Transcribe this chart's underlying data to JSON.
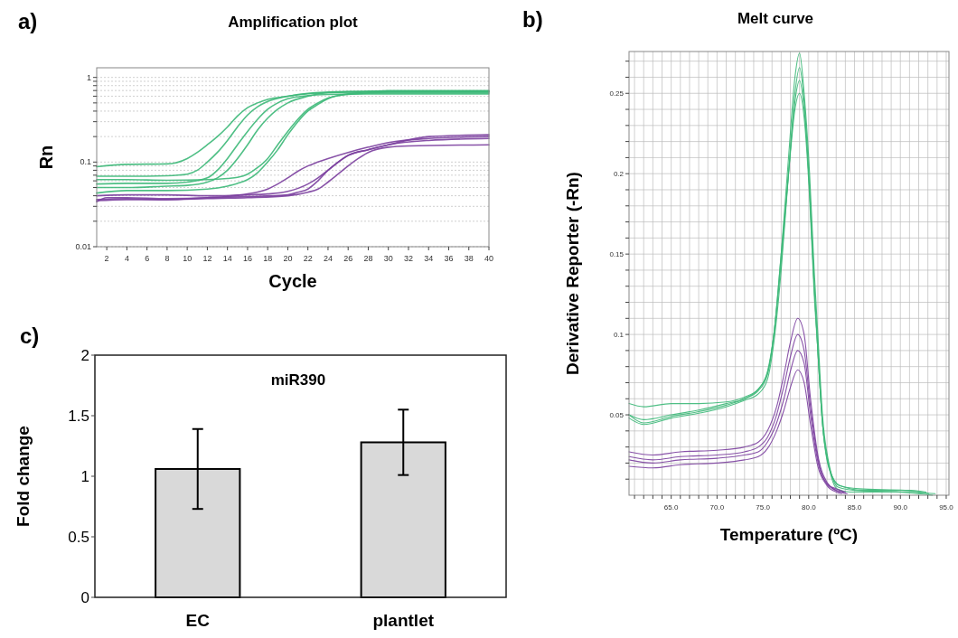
{
  "chart_data": [
    {
      "type": "line",
      "title": "Amplification plot",
      "xlabel": "Cycle",
      "ylabel": "Rn",
      "annotations": [
        "a)"
      ],
      "log": "y",
      "grid": "y",
      "xlim": [
        1,
        40
      ],
      "xticks": [
        2,
        4,
        6,
        8,
        10,
        12,
        14,
        16,
        18,
        20,
        22,
        24,
        26,
        28,
        30,
        32,
        34,
        36,
        38,
        40
      ],
      "ylim": [
        0.01,
        1.3
      ],
      "yticks": [
        0.01,
        {
          "value": 0.02,
          "label": null
        },
        {
          "value": 0.03,
          "label": null
        },
        {
          "value": 0.04,
          "label": null
        },
        {
          "value": 0.05,
          "label": null
        },
        {
          "value": 0.06,
          "label": null
        },
        {
          "value": 0.07,
          "label": null
        },
        {
          "value": 0.08,
          "label": null
        },
        {
          "value": 0.09,
          "label": null
        },
        0.1,
        {
          "value": 0.2,
          "label": null
        },
        {
          "value": 0.3,
          "label": null
        },
        {
          "value": 0.4,
          "label": null
        },
        {
          "value": 0.5,
          "label": null
        },
        {
          "value": 0.6,
          "label": null
        },
        {
          "value": 0.7,
          "label": null
        },
        {
          "value": 0.8,
          "label": null
        },
        {
          "value": 0.9,
          "label": null
        },
        1
      ],
      "series": [
        {
          "color": "#3cb878",
          "x": [
            1,
            4,
            8,
            10,
            11,
            12,
            13,
            14,
            15,
            16,
            17,
            18,
            20,
            22,
            26,
            32,
            40
          ],
          "values": [
            0.088,
            0.094,
            0.095,
            0.11,
            0.13,
            0.16,
            0.2,
            0.26,
            0.35,
            0.44,
            0.5,
            0.55,
            0.6,
            0.64,
            0.67,
            0.67,
            0.67
          ]
        },
        {
          "color": "#3cb878",
          "x": [
            1,
            4,
            8,
            10,
            11,
            12,
            13,
            14,
            15,
            16,
            17,
            18,
            20,
            22,
            26,
            32,
            40
          ],
          "values": [
            0.068,
            0.068,
            0.069,
            0.072,
            0.08,
            0.1,
            0.13,
            0.18,
            0.26,
            0.36,
            0.45,
            0.52,
            0.6,
            0.65,
            0.68,
            0.69,
            0.69
          ]
        },
        {
          "color": "#3cb878",
          "x": [
            1,
            4,
            8,
            10,
            12,
            13,
            14,
            15,
            16,
            17,
            18,
            19,
            20,
            22,
            24,
            28,
            40
          ],
          "values": [
            0.055,
            0.056,
            0.056,
            0.058,
            0.065,
            0.08,
            0.11,
            0.16,
            0.23,
            0.32,
            0.42,
            0.5,
            0.56,
            0.61,
            0.63,
            0.64,
            0.64
          ]
        },
        {
          "color": "#3cb878",
          "x": [
            1,
            4,
            8,
            10,
            12,
            13,
            14,
            15,
            16,
            17,
            18,
            19,
            20,
            22,
            24,
            28,
            40
          ],
          "values": [
            0.05,
            0.05,
            0.052,
            0.053,
            0.058,
            0.065,
            0.08,
            0.11,
            0.16,
            0.24,
            0.33,
            0.42,
            0.5,
            0.6,
            0.66,
            0.68,
            0.68
          ]
        },
        {
          "color": "#3cb878",
          "x": [
            1,
            4,
            8,
            12,
            14,
            15,
            16,
            17,
            18,
            19,
            20,
            21,
            22,
            23,
            24,
            26,
            30,
            40
          ],
          "values": [
            0.062,
            0.062,
            0.061,
            0.062,
            0.064,
            0.066,
            0.072,
            0.086,
            0.11,
            0.16,
            0.23,
            0.32,
            0.42,
            0.5,
            0.57,
            0.63,
            0.67,
            0.67
          ]
        },
        {
          "color": "#3cb878",
          "x": [
            1,
            4,
            8,
            12,
            14,
            15,
            16,
            17,
            18,
            19,
            20,
            21,
            22,
            23,
            24,
            26,
            30,
            40
          ],
          "values": [
            0.043,
            0.046,
            0.046,
            0.048,
            0.052,
            0.056,
            0.062,
            0.075,
            0.1,
            0.14,
            0.21,
            0.3,
            0.4,
            0.48,
            0.56,
            0.64,
            0.7,
            0.7
          ]
        },
        {
          "color": "#7b3f9e",
          "x": [
            1,
            2,
            4,
            8,
            12,
            16,
            18,
            19,
            20,
            21,
            22,
            23,
            24,
            26,
            28,
            30,
            34,
            40
          ],
          "values": [
            0.034,
            0.038,
            0.038,
            0.037,
            0.038,
            0.042,
            0.048,
            0.055,
            0.065,
            0.078,
            0.09,
            0.1,
            0.11,
            0.13,
            0.15,
            0.17,
            0.19,
            0.2
          ]
        },
        {
          "color": "#7b3f9e",
          "x": [
            1,
            4,
            8,
            12,
            16,
            20,
            21,
            22,
            23,
            24,
            25,
            26,
            28,
            30,
            34,
            40
          ],
          "values": [
            0.036,
            0.037,
            0.036,
            0.038,
            0.039,
            0.041,
            0.044,
            0.048,
            0.06,
            0.08,
            0.1,
            0.12,
            0.14,
            0.16,
            0.18,
            0.19
          ]
        },
        {
          "color": "#7b3f9e",
          "x": [
            1,
            4,
            8,
            12,
            16,
            20,
            22,
            23,
            24,
            25,
            26,
            27,
            28,
            30,
            32,
            40
          ],
          "values": [
            0.035,
            0.036,
            0.036,
            0.037,
            0.038,
            0.04,
            0.044,
            0.048,
            0.058,
            0.072,
            0.09,
            0.11,
            0.13,
            0.15,
            0.155,
            0.16
          ]
        },
        {
          "color": "#7b3f9e",
          "x": [
            1,
            4,
            8,
            12,
            16,
            18,
            20,
            22,
            23,
            24,
            26,
            28,
            30,
            34,
            40
          ],
          "values": [
            0.04,
            0.041,
            0.041,
            0.04,
            0.041,
            0.042,
            0.045,
            0.055,
            0.065,
            0.08,
            0.12,
            0.14,
            0.16,
            0.2,
            0.21
          ]
        }
      ]
    },
    {
      "type": "line",
      "title": "Melt curve",
      "xlabel": "Temperature (ºC)",
      "ylabel": "Derivative Reporter (-Rn)",
      "annotations": [
        "b)"
      ],
      "grid": true,
      "xlim": [
        60.4,
        95.3
      ],
      "xticks": [
        {
          "value": 61,
          "label": null
        },
        {
          "value": 62,
          "label": null
        },
        {
          "value": 63,
          "label": null
        },
        {
          "value": 64,
          "label": null
        },
        {
          "value": 65,
          "label": "65.0"
        },
        {
          "value": 66,
          "label": null
        },
        {
          "value": 67,
          "label": null
        },
        {
          "value": 68,
          "label": null
        },
        {
          "value": 69,
          "label": null
        },
        {
          "value": 70,
          "label": "70.0"
        },
        {
          "value": 71,
          "label": null
        },
        {
          "value": 72,
          "label": null
        },
        {
          "value": 73,
          "label": null
        },
        {
          "value": 74,
          "label": null
        },
        {
          "value": 75,
          "label": "75.0"
        },
        {
          "value": 76,
          "label": null
        },
        {
          "value": 77,
          "label": null
        },
        {
          "value": 78,
          "label": null
        },
        {
          "value": 79,
          "label": null
        },
        {
          "value": 80,
          "label": "80.0"
        },
        {
          "value": 81,
          "label": null
        },
        {
          "value": 82,
          "label": null
        },
        {
          "value": 83,
          "label": null
        },
        {
          "value": 84,
          "label": null
        },
        {
          "value": 85,
          "label": "85.0"
        },
        {
          "value": 86,
          "label": null
        },
        {
          "value": 87,
          "label": null
        },
        {
          "value": 88,
          "label": null
        },
        {
          "value": 89,
          "label": null
        },
        {
          "value": 90,
          "label": "90.0"
        },
        {
          "value": 91,
          "label": null
        },
        {
          "value": 92,
          "label": null
        },
        {
          "value": 93,
          "label": null
        },
        {
          "value": 94,
          "label": null
        },
        {
          "value": 95,
          "label": "95.0"
        }
      ],
      "ylim": [
        0,
        0.276
      ],
      "yticks": [
        {
          "value": 0.01,
          "label": null
        },
        {
          "value": 0.02,
          "label": null
        },
        {
          "value": 0.03,
          "label": null
        },
        {
          "value": 0.04,
          "label": null
        },
        0.05,
        {
          "value": 0.06,
          "label": null
        },
        {
          "value": 0.07,
          "label": null
        },
        {
          "value": 0.08,
          "label": null
        },
        {
          "value": 0.09,
          "label": null
        },
        0.1,
        {
          "value": 0.11,
          "label": null
        },
        {
          "value": 0.12,
          "label": null
        },
        {
          "value": 0.13,
          "label": null
        },
        {
          "value": 0.14,
          "label": null
        },
        0.15,
        {
          "value": 0.16,
          "label": null
        },
        {
          "value": 0.17,
          "label": null
        },
        {
          "value": 0.18,
          "label": null
        },
        {
          "value": 0.19,
          "label": null
        },
        0.2,
        {
          "value": 0.21,
          "label": null
        },
        {
          "value": 0.22,
          "label": null
        },
        {
          "value": 0.23,
          "label": null
        },
        {
          "value": 0.24,
          "label": null
        },
        0.25,
        {
          "value": 0.26,
          "label": null
        },
        {
          "value": 0.27,
          "label": null
        }
      ],
      "series": [
        {
          "color": "#3cb878",
          "x": [
            60.4,
            62,
            65,
            68,
            71,
            73,
            74.5,
            75.5,
            76.2,
            77,
            77.8,
            78.5,
            79,
            79.5,
            80.1,
            80.6,
            81,
            81.5,
            82.2,
            83.2,
            85,
            90,
            93.5
          ],
          "values": [
            0.05,
            0.045,
            0.049,
            0.052,
            0.056,
            0.06,
            0.065,
            0.075,
            0.1,
            0.15,
            0.21,
            0.26,
            0.275,
            0.25,
            0.2,
            0.14,
            0.1,
            0.05,
            0.02,
            0.005,
            0.003,
            0.002,
            0
          ]
        },
        {
          "color": "#3cb878",
          "x": [
            60.4,
            62,
            65,
            68,
            71,
            73,
            74.5,
            75.5,
            76.2,
            77,
            77.8,
            78.5,
            79,
            79.5,
            80.1,
            80.6,
            81,
            81.5,
            82.2,
            83.3,
            85.5,
            90.5,
            93.1
          ],
          "values": [
            0.057,
            0.055,
            0.057,
            0.057,
            0.058,
            0.061,
            0.066,
            0.077,
            0.1,
            0.145,
            0.2,
            0.25,
            0.266,
            0.245,
            0.19,
            0.13,
            0.09,
            0.045,
            0.018,
            0.006,
            0.004,
            0.003,
            0.001
          ]
        },
        {
          "color": "#3cb878",
          "x": [
            60.4,
            62,
            65,
            68,
            71,
            73,
            74.5,
            75.5,
            76.2,
            77,
            77.8,
            78.5,
            79,
            79.5,
            80.1,
            80.6,
            81,
            81.5,
            82.2,
            83.1,
            84.5,
            89.5,
            93.8
          ],
          "values": [
            0.048,
            0.044,
            0.048,
            0.051,
            0.055,
            0.059,
            0.063,
            0.072,
            0.095,
            0.14,
            0.2,
            0.245,
            0.258,
            0.24,
            0.19,
            0.13,
            0.09,
            0.045,
            0.018,
            0.004,
            0.002,
            0.002,
            0.001
          ]
        },
        {
          "color": "#3cb878",
          "x": [
            60.4,
            62,
            65,
            68,
            71,
            73,
            74.5,
            75.5,
            76.2,
            77,
            77.8,
            78.5,
            79,
            79.5,
            80.1,
            80.6,
            81,
            81.5,
            82.2,
            83.4,
            86,
            91,
            92.8
          ],
          "values": [
            0.05,
            0.047,
            0.05,
            0.053,
            0.057,
            0.06,
            0.066,
            0.076,
            0.1,
            0.15,
            0.2,
            0.24,
            0.25,
            0.235,
            0.185,
            0.125,
            0.09,
            0.045,
            0.017,
            0.006,
            0.003,
            0.003,
            0.002
          ]
        },
        {
          "color": "#7b3f9e",
          "x": [
            60.4,
            63,
            66,
            70,
            73,
            74.5,
            75.5,
            76.5,
            77.3,
            78,
            78.8,
            79.5,
            80.2,
            81,
            82,
            83,
            84.2
          ],
          "values": [
            0.027,
            0.025,
            0.027,
            0.028,
            0.03,
            0.033,
            0.04,
            0.055,
            0.075,
            0.095,
            0.11,
            0.1,
            0.06,
            0.025,
            0.008,
            0.003,
            0.001
          ]
        },
        {
          "color": "#7b3f9e",
          "x": [
            60.4,
            63,
            66,
            70,
            73,
            74.5,
            75.5,
            76.5,
            77.3,
            78,
            78.8,
            79.5,
            80.2,
            81,
            82,
            83,
            84
          ],
          "values": [
            0.024,
            0.022,
            0.024,
            0.025,
            0.027,
            0.03,
            0.036,
            0.05,
            0.068,
            0.086,
            0.1,
            0.09,
            0.055,
            0.023,
            0.007,
            0.004,
            0.002
          ]
        },
        {
          "color": "#7b3f9e",
          "x": [
            60.4,
            63,
            66,
            70,
            73,
            74.5,
            75.5,
            76.5,
            77.3,
            78,
            78.8,
            79.5,
            80.2,
            81,
            82,
            83,
            83.8
          ],
          "values": [
            0.022,
            0.02,
            0.022,
            0.023,
            0.025,
            0.027,
            0.033,
            0.045,
            0.06,
            0.077,
            0.09,
            0.082,
            0.05,
            0.021,
            0.007,
            0.003,
            0.002
          ]
        },
        {
          "color": "#7b3f9e",
          "x": [
            60.4,
            63,
            66,
            70,
            73,
            74.5,
            75.5,
            76.5,
            77.3,
            78,
            78.8,
            79.5,
            80.2,
            81,
            82,
            83,
            83.6
          ],
          "values": [
            0.018,
            0.017,
            0.019,
            0.02,
            0.022,
            0.024,
            0.029,
            0.04,
            0.053,
            0.067,
            0.078,
            0.07,
            0.044,
            0.018,
            0.006,
            0.002,
            0.001
          ]
        }
      ]
    },
    {
      "type": "bar",
      "title": "miR390",
      "ylabel": "Fold change",
      "annotations": [
        "c)"
      ],
      "categories": [
        "EC",
        "plantlet"
      ],
      "values": [
        1.06,
        1.28
      ],
      "errors": [
        [
          0.73,
          1.39
        ],
        [
          1.01,
          1.55
        ]
      ],
      "color": "#d9d9d9",
      "ylim": [
        0,
        2
      ],
      "yticks": [
        0,
        0.5,
        1,
        1.5,
        2
      ]
    }
  ]
}
